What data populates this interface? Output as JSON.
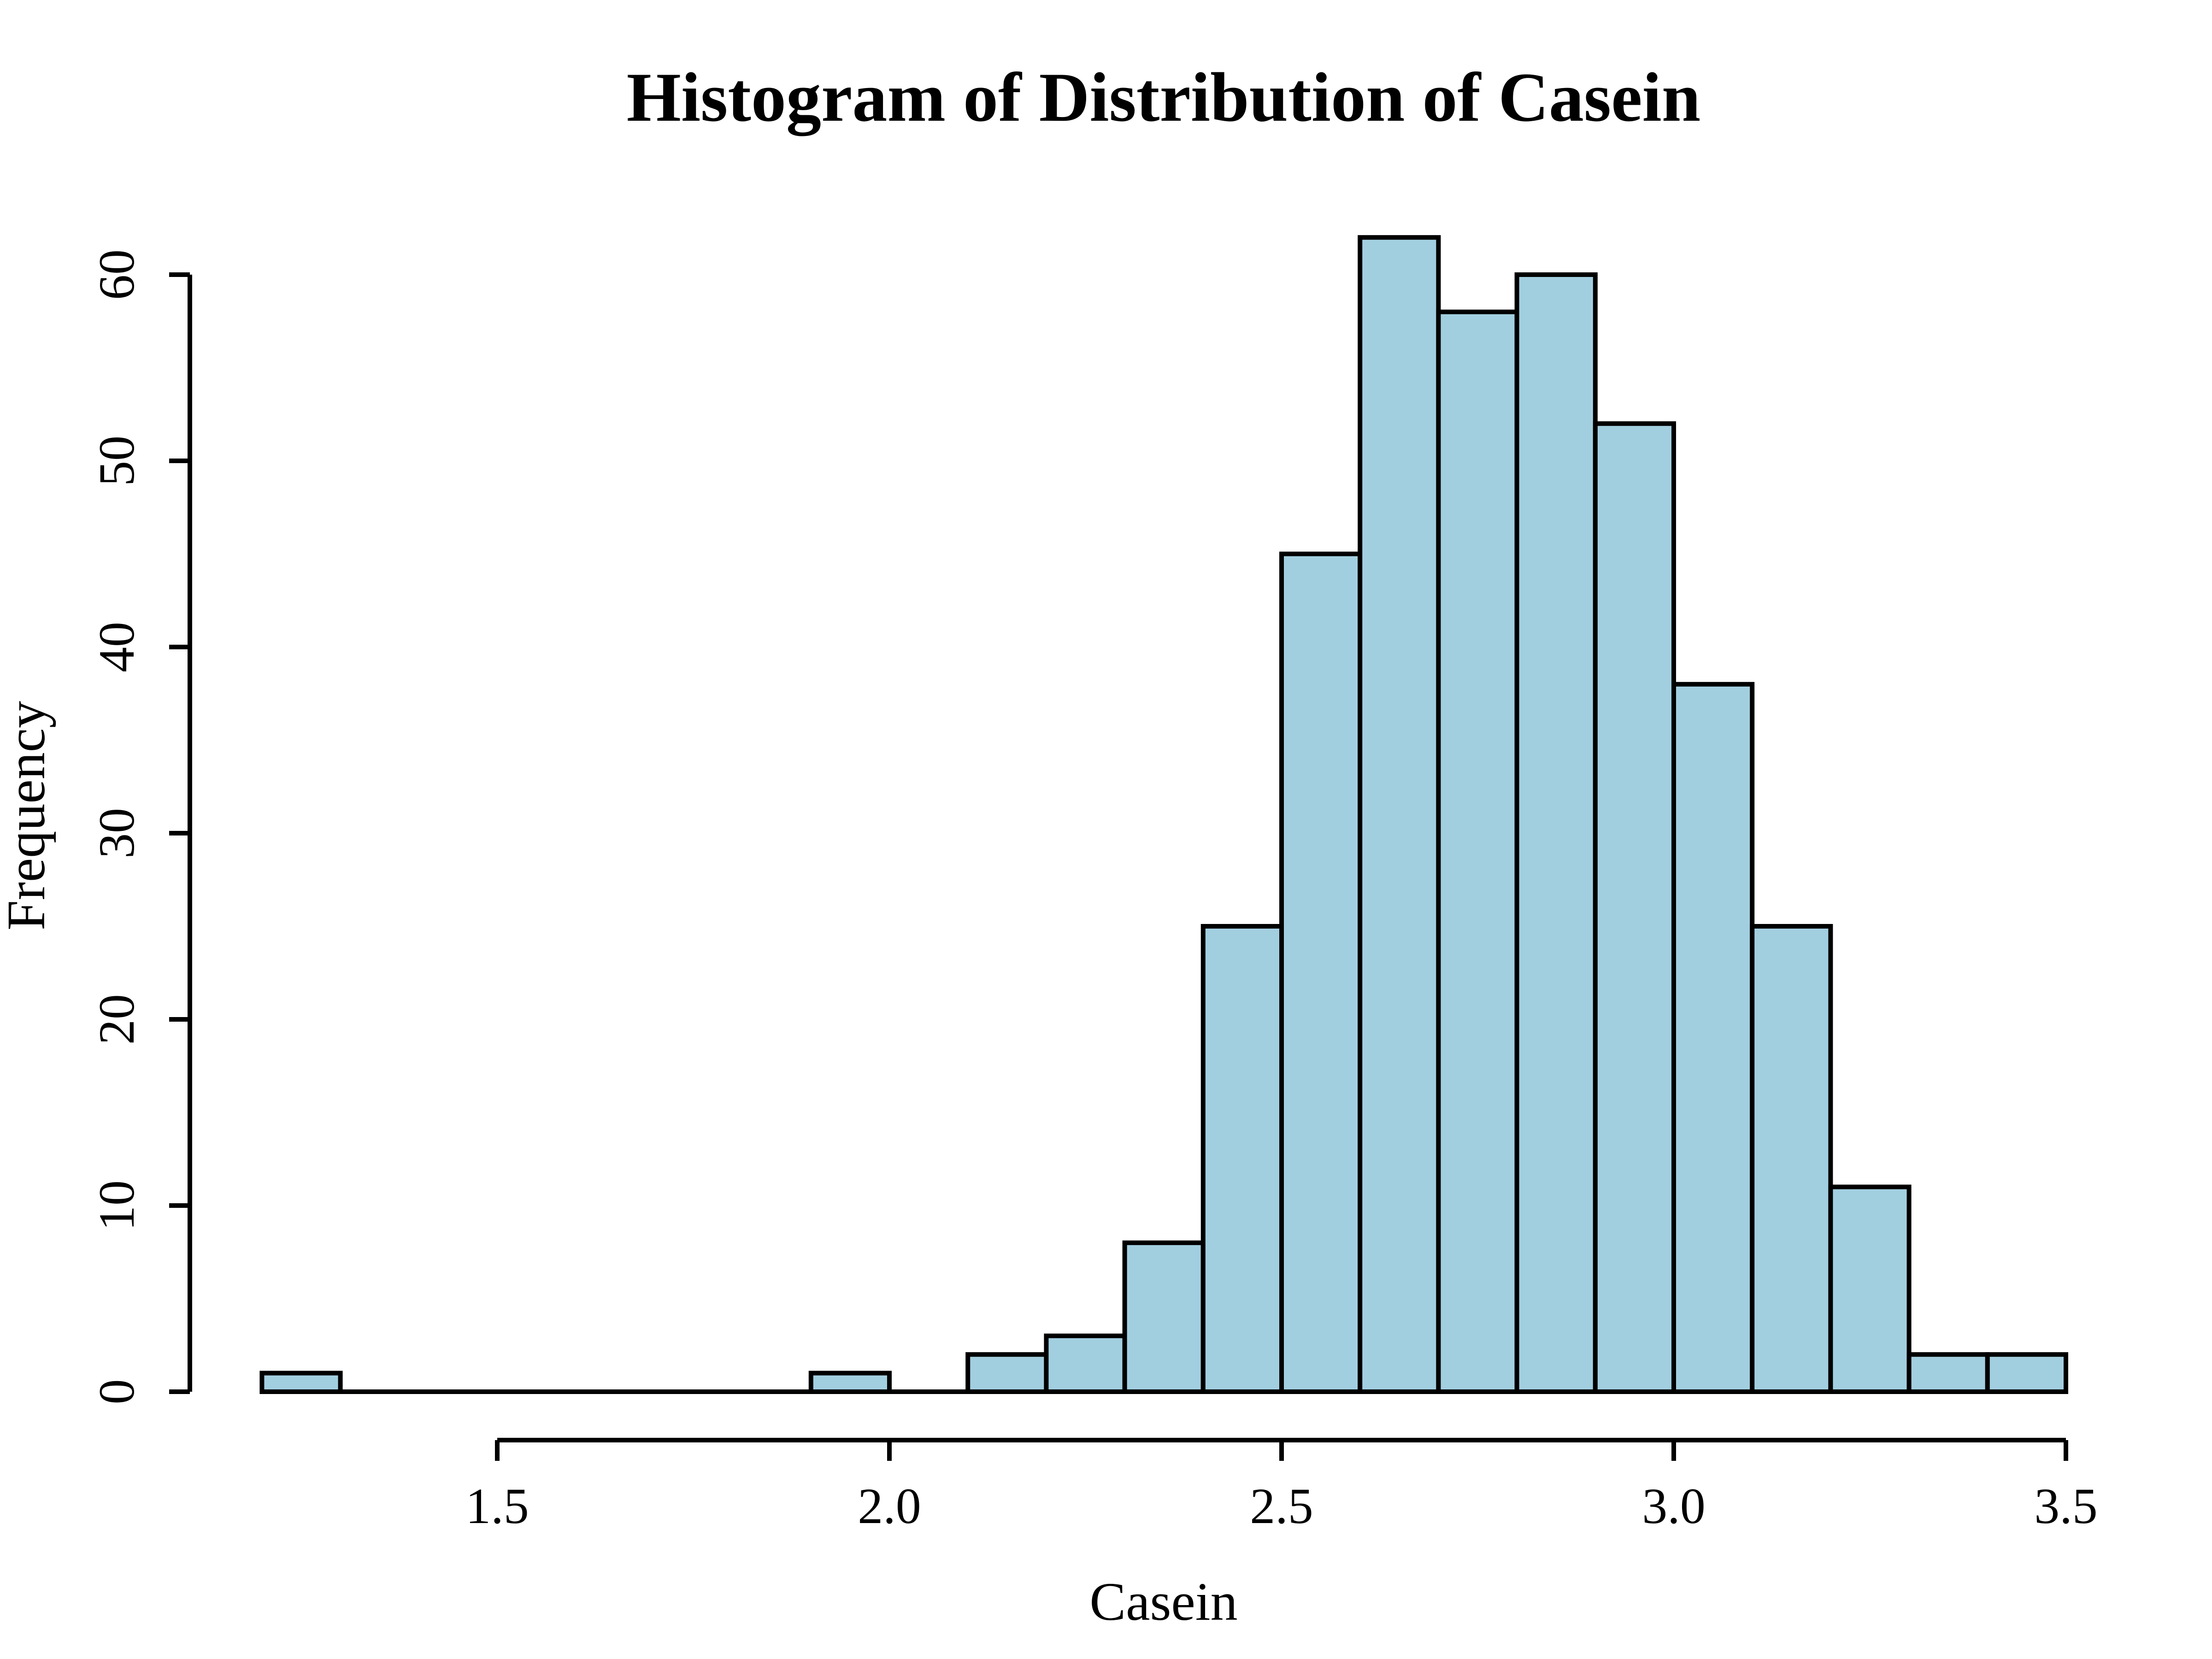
{
  "chart_data": {
    "type": "bar",
    "title": "Histogram of Distribution of Casein",
    "xlabel": "Casein",
    "ylabel": "Frequency",
    "bar_color": "#A2CFE0",
    "bin_width": 0.1,
    "bins": [
      {
        "start": 1.2,
        "end": 1.3,
        "count": 1
      },
      {
        "start": 1.3,
        "end": 1.4,
        "count": 0
      },
      {
        "start": 1.4,
        "end": 1.5,
        "count": 0
      },
      {
        "start": 1.5,
        "end": 1.6,
        "count": 0
      },
      {
        "start": 1.6,
        "end": 1.7,
        "count": 0
      },
      {
        "start": 1.7,
        "end": 1.8,
        "count": 0
      },
      {
        "start": 1.8,
        "end": 1.9,
        "count": 0
      },
      {
        "start": 1.9,
        "end": 2.0,
        "count": 1
      },
      {
        "start": 2.0,
        "end": 2.1,
        "count": 0
      },
      {
        "start": 2.1,
        "end": 2.2,
        "count": 2
      },
      {
        "start": 2.2,
        "end": 2.3,
        "count": 3
      },
      {
        "start": 2.3,
        "end": 2.4,
        "count": 8
      },
      {
        "start": 2.4,
        "end": 2.5,
        "count": 25
      },
      {
        "start": 2.5,
        "end": 2.6,
        "count": 45
      },
      {
        "start": 2.6,
        "end": 2.7,
        "count": 62
      },
      {
        "start": 2.7,
        "end": 2.8,
        "count": 58
      },
      {
        "start": 2.8,
        "end": 2.9,
        "count": 60
      },
      {
        "start": 2.9,
        "end": 3.0,
        "count": 52
      },
      {
        "start": 3.0,
        "end": 3.1,
        "count": 38
      },
      {
        "start": 3.1,
        "end": 3.2,
        "count": 25
      },
      {
        "start": 3.2,
        "end": 3.3,
        "count": 11
      },
      {
        "start": 3.3,
        "end": 3.4,
        "count": 2
      },
      {
        "start": 3.4,
        "end": 3.5,
        "count": 2
      }
    ],
    "xlim": [
      1.2,
      3.5
    ],
    "ylim": [
      0,
      62
    ],
    "x_ticks": [
      1.5,
      2.0,
      2.5,
      3.0,
      3.5
    ],
    "x_tick_labels": [
      "1.5",
      "2.0",
      "2.5",
      "3.0",
      "3.5"
    ],
    "y_ticks": [
      0,
      10,
      20,
      30,
      40,
      50,
      60
    ],
    "y_tick_labels": [
      "0",
      "10",
      "20",
      "30",
      "40",
      "50",
      "60"
    ],
    "grid": false,
    "legend": "none"
  }
}
